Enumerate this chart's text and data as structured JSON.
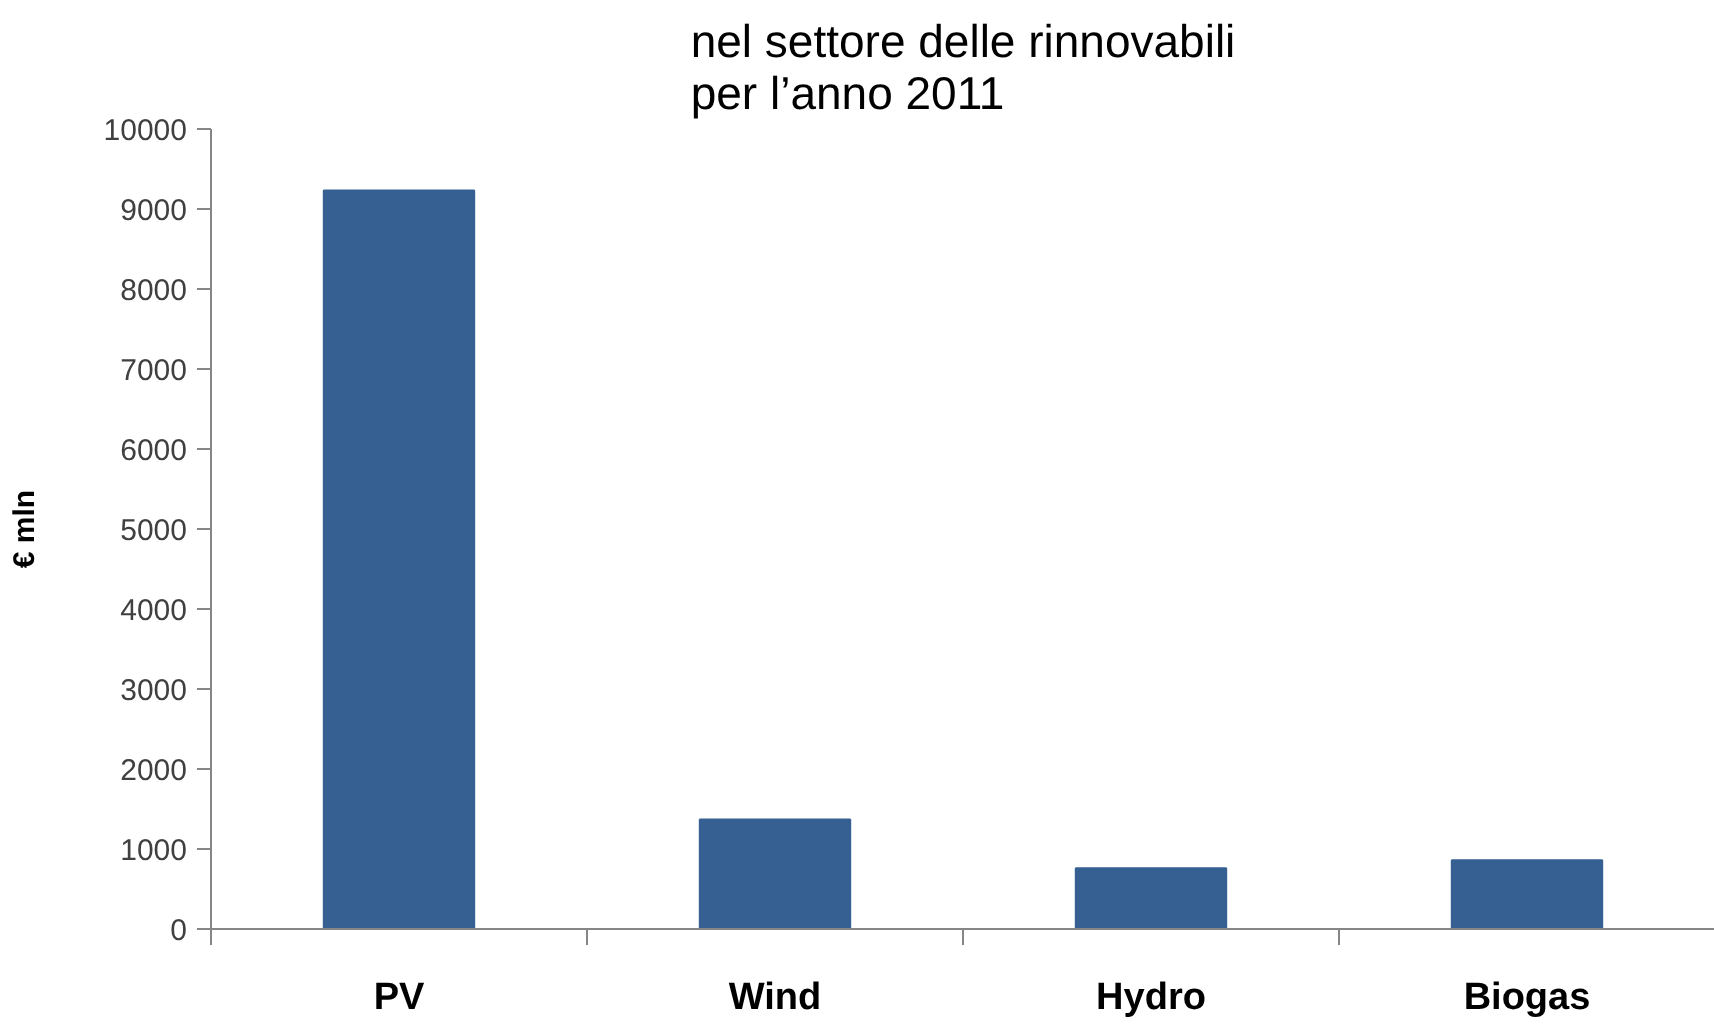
{
  "chart_data": {
    "type": "bar",
    "title": "nel settore delle rinnovabili\nper l’anno 2011",
    "ylabel": "€ mln",
    "categories": [
      "PV",
      "Wind",
      "Hydro",
      "Biogas"
    ],
    "values": [
      9230,
      1370,
      760,
      860
    ],
    "color": "#366092",
    "ylim": [
      0,
      10000
    ],
    "yticks": [
      0,
      1000,
      2000,
      3000,
      4000,
      5000,
      6000,
      7000,
      8000,
      9000,
      10000
    ]
  }
}
